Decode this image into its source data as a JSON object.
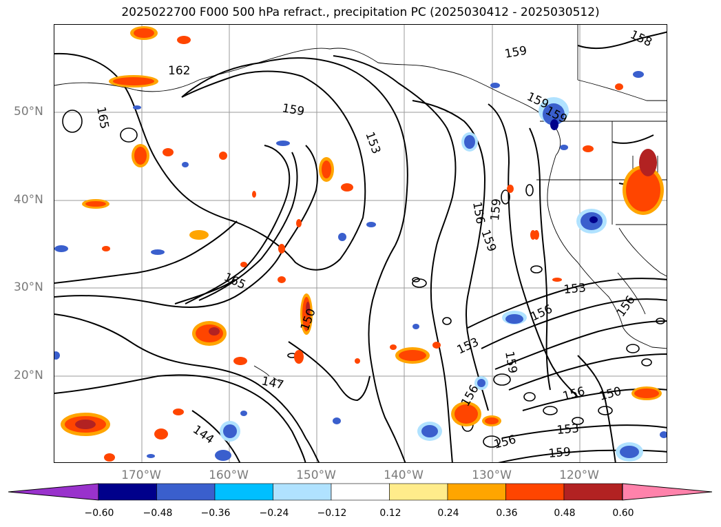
{
  "title": "2025022700 F000 500 hPa refract., precipitation PC (2025030412 - 2025030512)",
  "lat_labels": [
    "50°N",
    "40°N",
    "30°N",
    "20°N"
  ],
  "lon_labels": [
    "170°W",
    "160°W",
    "150°W",
    "140°W",
    "130°W",
    "120°W"
  ],
  "contour_labels": [
    "162",
    "165",
    "159",
    "153",
    "159",
    "159",
    "159",
    "158",
    "156",
    "159",
    "159",
    "165",
    "150",
    "147",
    "144",
    "153",
    "153",
    "156",
    "159",
    "156",
    "150",
    "153",
    "156",
    "159",
    "156",
    "156"
  ],
  "colorbar": {
    "ticks": [
      "−0.60",
      "−0.48",
      "−0.36",
      "−0.24",
      "−0.12",
      "0.12",
      "0.24",
      "0.36",
      "0.48",
      "0.60"
    ],
    "colors": [
      "#9932cc",
      "#00008b",
      "#3a5fcd",
      "#00bfff",
      "#b0e2ff",
      "#ffffff",
      "#ffec8b",
      "#ffa500",
      "#ff4500",
      "#b22222",
      "#ff82ab"
    ]
  }
}
